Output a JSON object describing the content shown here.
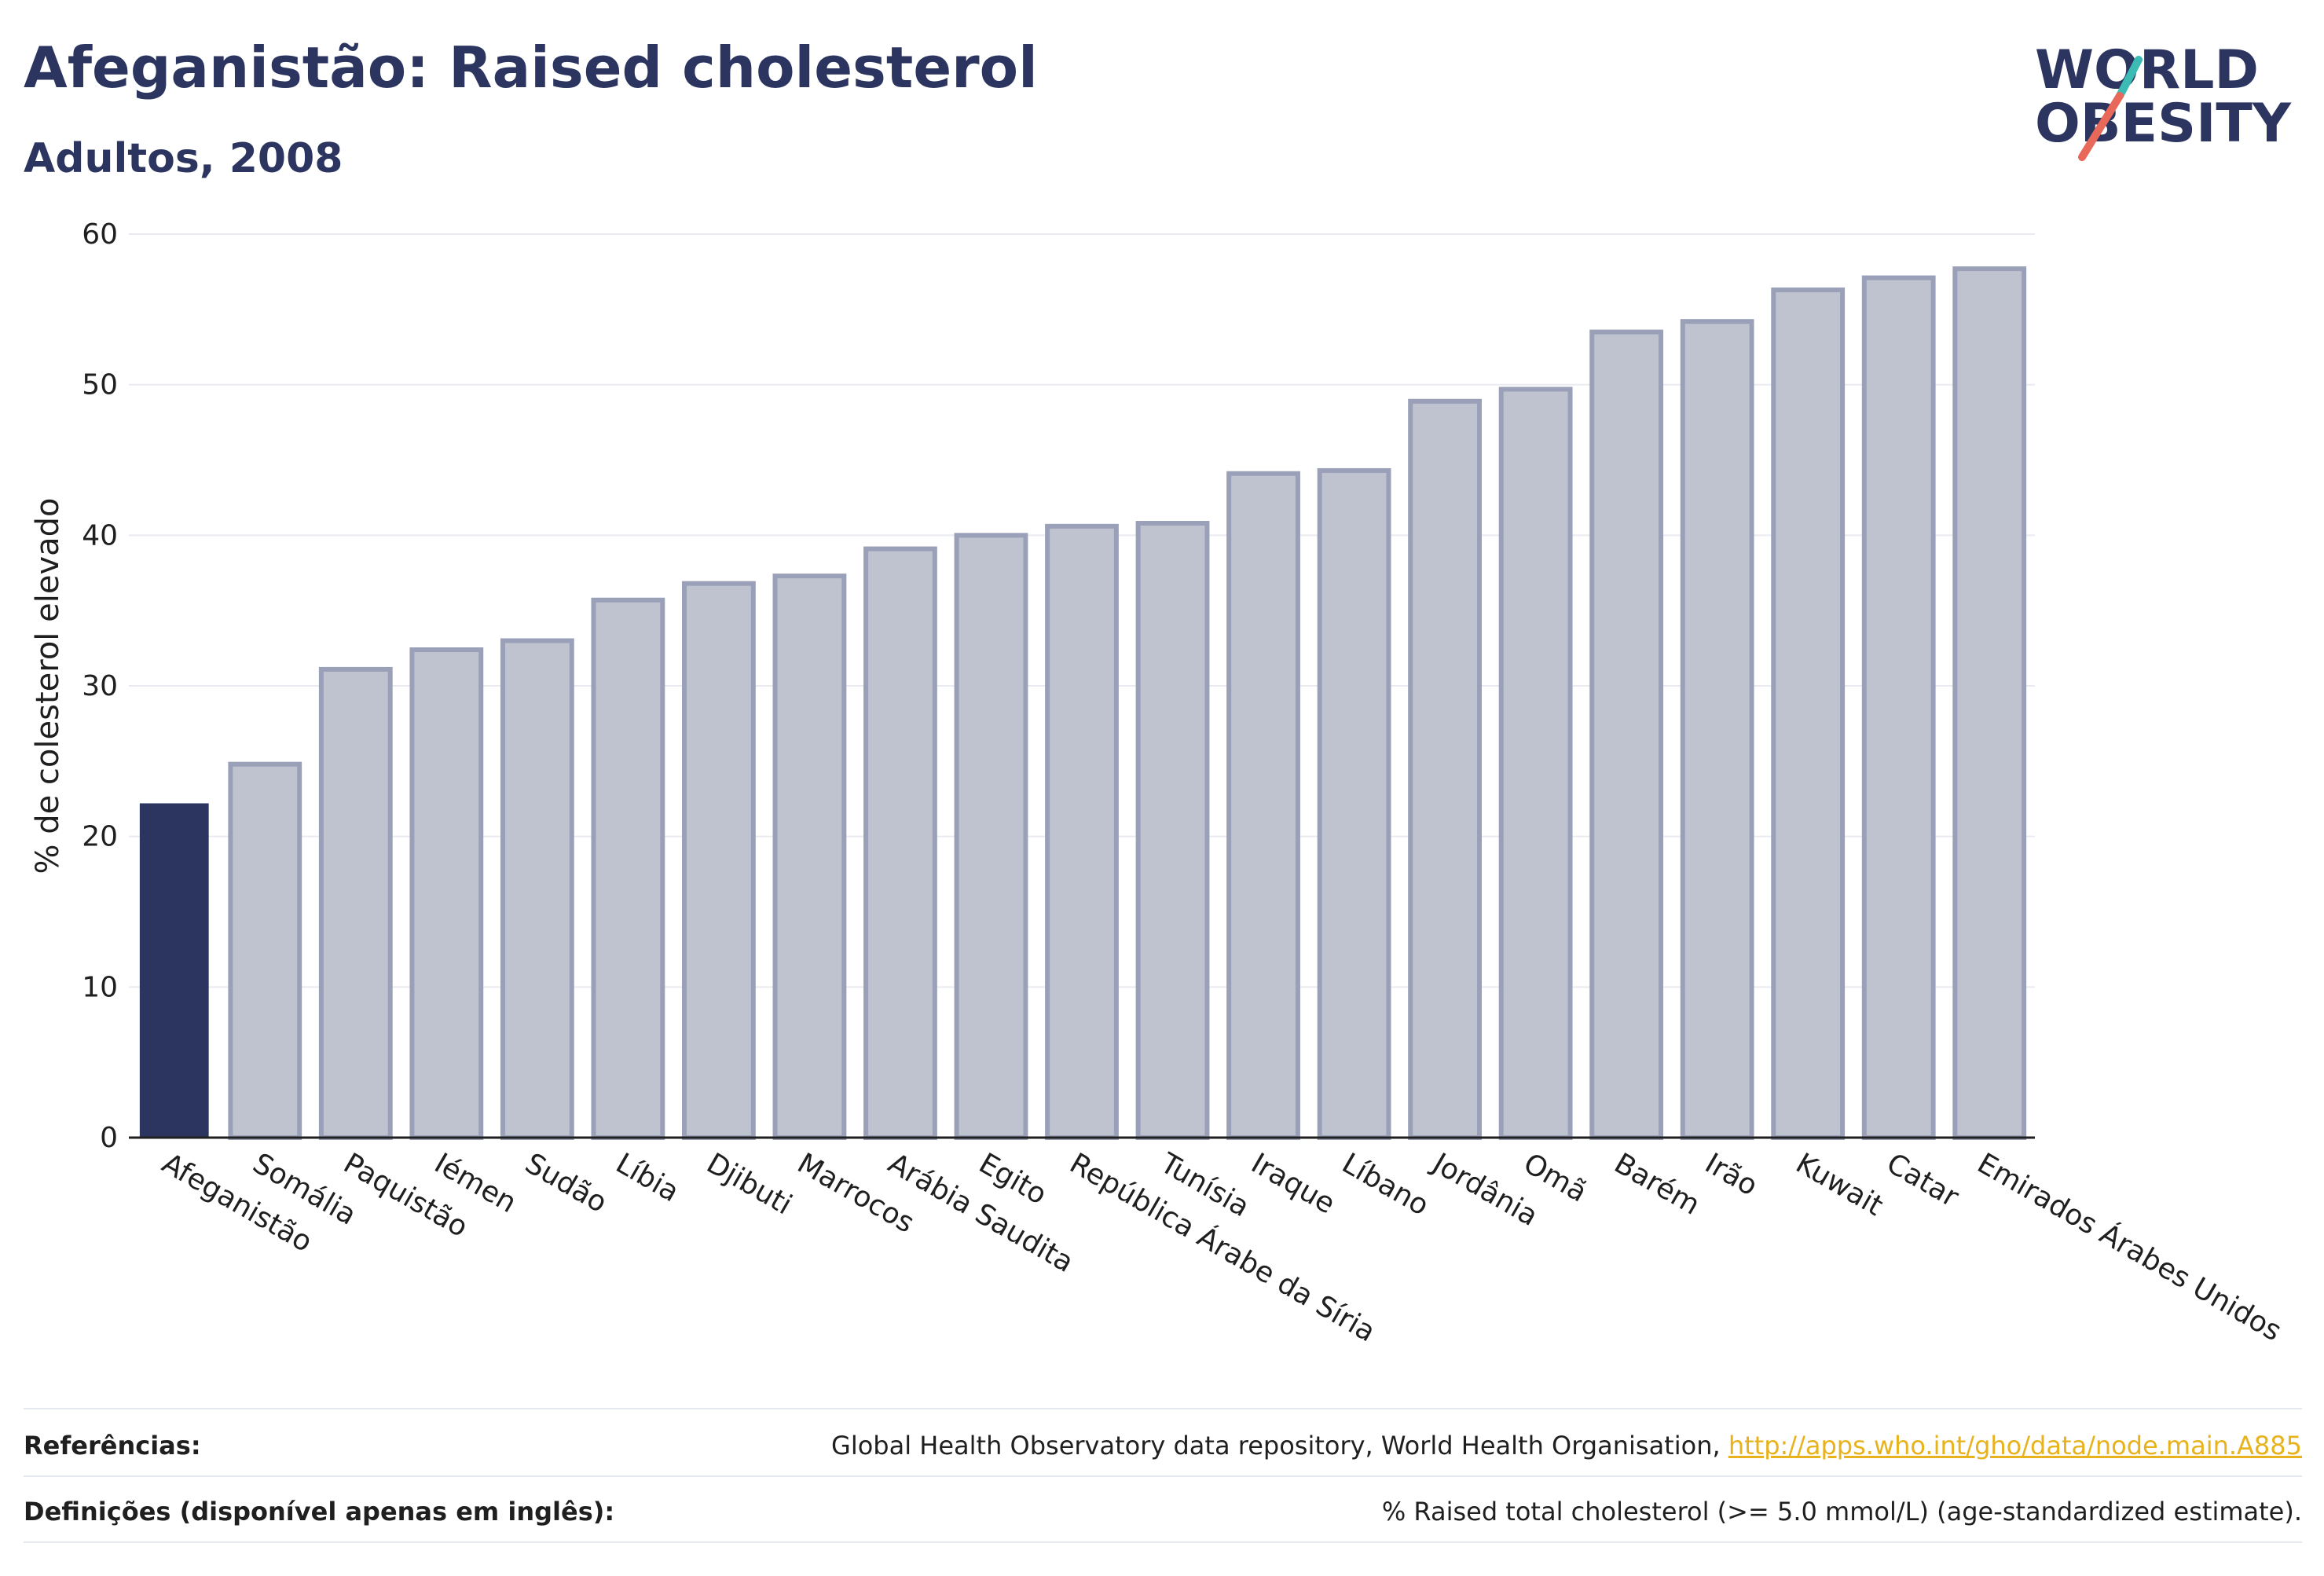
{
  "header": {
    "title": "Afeganistão: Raised cholesterol",
    "subtitle": "Adultos, 2008"
  },
  "logo": {
    "line1": "WORLD",
    "line2": "OBESITY",
    "color_text": "#2b3560",
    "color_accent_teal": "#3bbbb3",
    "color_accent_red": "#e8685a"
  },
  "chart_data": {
    "type": "bar",
    "ylabel": "% de colesterol elevado",
    "ylim": [
      0,
      60
    ],
    "yticks": [
      0,
      10,
      20,
      30,
      40,
      50,
      60
    ],
    "grid": true,
    "highlight_color": "#2b3560",
    "bar_color": "#bfc3d0",
    "bar_edge_color": "#9aa0b8",
    "categories": [
      "Afeganistão",
      "Somália",
      "Paquistão",
      "Iémen",
      "Sudão",
      "Líbia",
      "Djibuti",
      "Marrocos",
      "Arábia Saudita",
      "Egito",
      "República Árabe da Síria",
      "Tunísia",
      "Iraque",
      "Líbano",
      "Jordânia",
      "Omã",
      "Barém",
      "Irão",
      "Kuwait",
      "Catar",
      "Emirados Árabes Unidos"
    ],
    "values": [
      22.2,
      24.8,
      31.1,
      32.4,
      33.0,
      35.7,
      36.8,
      37.3,
      39.1,
      40.0,
      40.6,
      40.8,
      44.1,
      44.3,
      48.9,
      49.7,
      53.5,
      54.2,
      56.3,
      57.1,
      57.7
    ],
    "highlight_index": 0
  },
  "footer": {
    "references_label": "Referências:",
    "references_text": "Global Health Observatory data repository, World Health Organisation, ",
    "references_link": "http://apps.who.int/gho/data/node.main.A885",
    "definitions_label": "Definições (disponível apenas em inglês):",
    "definitions_text": "% Raised total cholesterol (>= 5.0 mmol/L) (age-standardized estimate)."
  }
}
